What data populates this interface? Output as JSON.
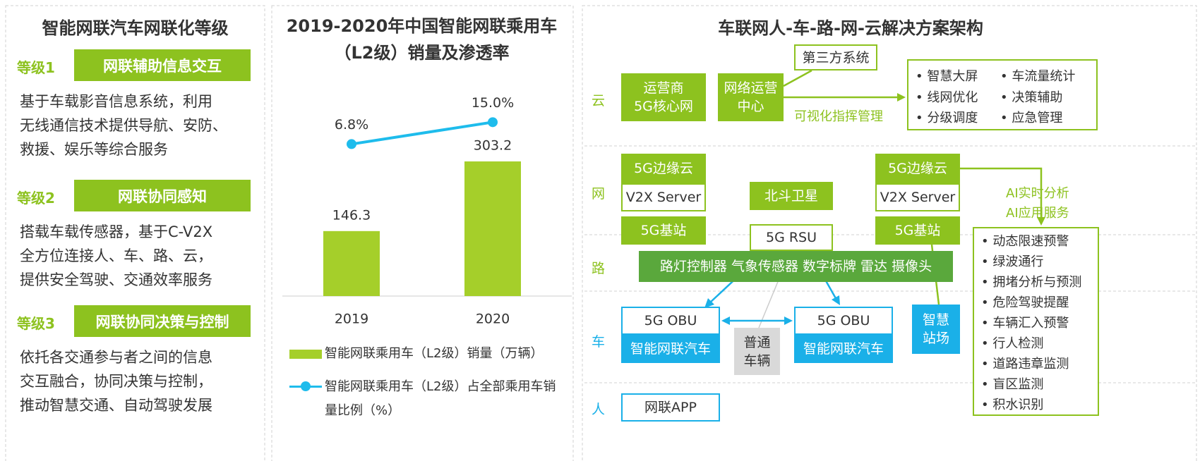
{
  "levels_panel": {
    "title": "智能网联汽车网联化等级",
    "levels": [
      {
        "level": "等级1",
        "name": "网联辅助信息交互",
        "lines": [
          "基于车载影音信息系统，利用",
          "无线通信技术提供导航、安防、",
          "救援、娱乐等综合服务"
        ]
      },
      {
        "level": "等级2",
        "name": "网联协同感知",
        "lines": [
          "搭载车载传感器，基于C-V2X",
          "全方位连接人、车、路、云，",
          "提供安全驾驶、交通效率服务"
        ]
      },
      {
        "level": "等级3",
        "name": "网联协同决策与控制",
        "lines": [
          "依托各交通参与者之间的信息",
          "交互融合，协同决策与控制，",
          "推动智慧交通、自动驾驶发展"
        ]
      }
    ]
  },
  "chart_data": {
    "type": "bar",
    "title": "2019-2020年中国智能网联乘用车（L2级）销量及渗透率",
    "categories": [
      "2019",
      "2020"
    ],
    "series": [
      {
        "name": "智能网联乘用车（L2级）销量（万辆）",
        "type": "bar",
        "color": "#a5cf2a",
        "values": [
          146.3,
          303.2
        ]
      },
      {
        "name": "智能网联乘用车（L2级）占全部乘用车销量比例（%）",
        "type": "line",
        "axis": "y2",
        "color": "#1ebcec",
        "values": [
          6.8,
          15.0
        ],
        "value_labels": [
          "6.8%",
          "15.0%"
        ]
      }
    ],
    "ylim": [
      0,
      500
    ],
    "y2lim": [
      -50,
      33
    ],
    "legend": "bottom"
  },
  "architecture": {
    "title": "车联网人-车-路-网-云解决方案架构",
    "layers": [
      "云",
      "网",
      "路",
      "车",
      "人"
    ],
    "nodes": [
      "运营商\n5G核心网",
      "网络运营\n中心",
      "第三方系统",
      "5G边缘云",
      "V2X Server",
      "北斗卫星",
      "5G边缘云",
      "V2X Server",
      "5G基站",
      "5G RSU",
      "5G基站",
      "5G OBU",
      "智能网联汽车",
      "普通\n车辆",
      "5G OBU",
      "智能网联汽车",
      "智慧\n站场",
      "网联APP"
    ],
    "road_devices": "路灯控制器 气象传感器 数字标牌 雷达 摄像头",
    "cloud_services": [
      "智慧大屏",
      "车流量统计",
      "线网优化",
      "决策辅助",
      "分级调度",
      "应急管理"
    ],
    "road_services": [
      "动态限速预警",
      "绿波通行",
      "拥堵分析与预测",
      "危险驾驶提醒",
      "车辆汇入预警",
      "行人检测",
      "道路违章监测",
      "盲区监测",
      "积水识别"
    ],
    "annotations": [
      "可视化指挥管理",
      "AI实时分析",
      "AI应用服务"
    ]
  }
}
